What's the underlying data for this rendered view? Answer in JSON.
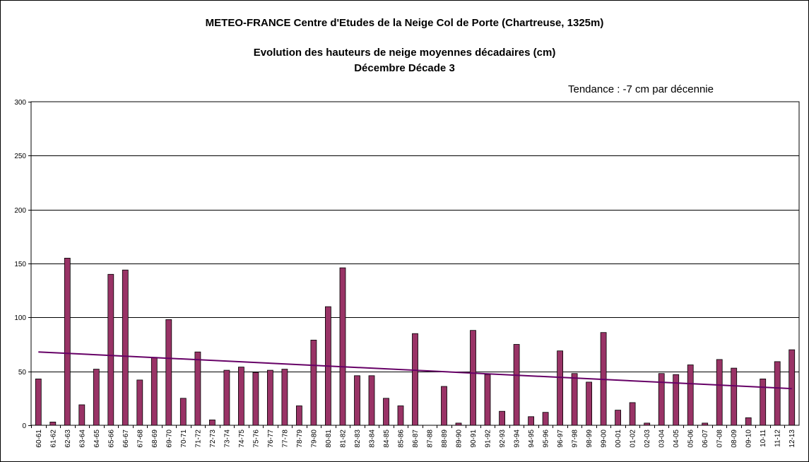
{
  "titles": {
    "line1": "METEO-FRANCE  Centre d'Etudes de la Neige   Col de Porte  (Chartreuse, 1325m)",
    "line2": "Evolution des hauteurs de neige moyennes décadaires (cm)",
    "line3": "Décembre  Décade 3"
  },
  "trend_note": "Tendance : -7 cm par décennie",
  "chart_data": {
    "type": "bar",
    "title": "Evolution des hauteurs de neige moyennes décadaires (cm)",
    "subtitle": "Décembre  Décade 3",
    "xlabel": "",
    "ylabel": "",
    "ylim": [
      0,
      300
    ],
    "yticks": [
      0,
      50,
      100,
      150,
      200,
      250,
      300
    ],
    "grid": true,
    "legend": "none",
    "bar_color": "#993366",
    "trend_color": "#660066",
    "categories": [
      "60-61",
      "61-62",
      "62-63",
      "63-64",
      "64-65",
      "65-66",
      "66-67",
      "67-68",
      "68-69",
      "69-70",
      "70-71",
      "71-72",
      "72-73",
      "73-74",
      "74-75",
      "75-76",
      "76-77",
      "77-78",
      "78-79",
      "79-80",
      "80-81",
      "81-82",
      "82-83",
      "83-84",
      "84-85",
      "85-86",
      "86-87",
      "87-88",
      "88-89",
      "89-90",
      "90-91",
      "91-92",
      "92-93",
      "93-94",
      "94-95",
      "95-96",
      "96-97",
      "97-98",
      "98-99",
      "99-00",
      "00-01",
      "01-02",
      "02-03",
      "03-04",
      "04-05",
      "05-06",
      "06-07",
      "07-08",
      "08-09",
      "09-10",
      "10-11",
      "11-12",
      "12-13"
    ],
    "values": [
      43,
      3,
      155,
      19,
      52,
      140,
      144,
      42,
      63,
      98,
      25,
      68,
      5,
      51,
      54,
      49,
      51,
      52,
      18,
      79,
      110,
      146,
      46,
      46,
      25,
      18,
      85,
      0,
      36,
      2,
      88,
      47,
      13,
      75,
      8,
      12,
      69,
      48,
      40,
      86,
      14,
      21,
      2,
      48,
      47,
      56,
      2,
      61,
      53,
      7,
      43,
      59,
      70
    ],
    "trend": {
      "start": 68,
      "end": 34
    }
  }
}
